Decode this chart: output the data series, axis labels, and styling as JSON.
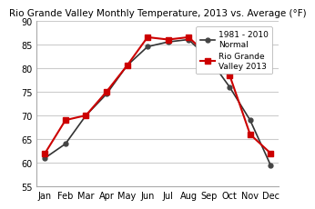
{
  "title": "Rio Grande Valley Monthly Temperature, 2013 vs. Average (°F)",
  "months": [
    "Jan",
    "Feb",
    "Mar",
    "Apr",
    "May",
    "Jun",
    "Jul",
    "Aug",
    "Sep",
    "Oct",
    "Nov",
    "Dec"
  ],
  "rgv_2013": [
    62,
    69,
    70,
    75,
    80.5,
    86.5,
    86,
    86.5,
    82.5,
    78.5,
    66,
    62
  ],
  "normal": [
    61,
    64,
    70,
    74.5,
    80.5,
    84.5,
    85.5,
    86,
    82,
    76,
    69,
    59.5
  ],
  "ylim": [
    55,
    90
  ],
  "yticks": [
    55,
    60,
    65,
    70,
    75,
    80,
    85,
    90
  ],
  "line_2013_color": "#cc0000",
  "line_normal_color": "#333333",
  "marker_2013_color": "#cc0000",
  "marker_normal_color": "#444444",
  "legend_2013": "Rio Grande\nValley 2013",
  "legend_normal": "1981 - 2010\nNormal",
  "bg_color": "#ffffff",
  "grid_color": "#cccccc",
  "title_fontsize": 7.5,
  "tick_fontsize": 7,
  "legend_fontsize": 6.5
}
